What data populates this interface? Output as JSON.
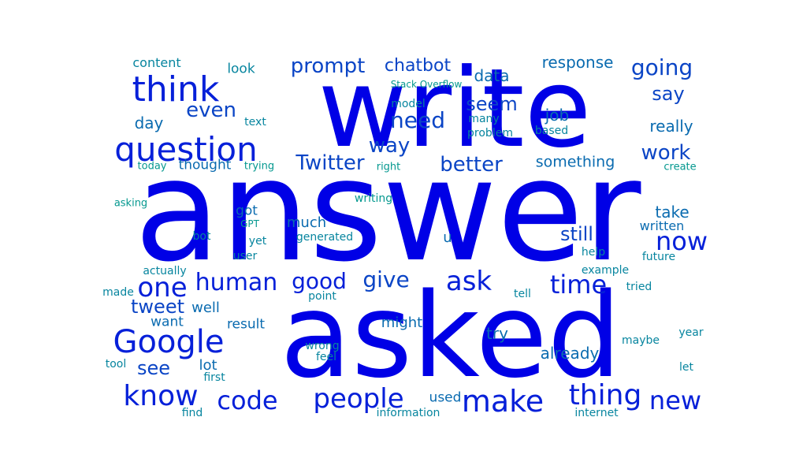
{
  "word_cloud": {
    "palette": {
      "t0": "#0000e6",
      "t1": "#0620d9",
      "t2": "#0b45c6",
      "t3": "#0a6bb0",
      "t4": "#07859f",
      "t5": "#04988f"
    },
    "words": [
      {
        "text": "answer",
        "tier": "t0"
      },
      {
        "text": "asked",
        "tier": "t0"
      },
      {
        "text": "write",
        "tier": "t0"
      },
      {
        "text": "question",
        "tier": "t1"
      },
      {
        "text": "think",
        "tier": "t1"
      },
      {
        "text": "Google",
        "tier": "t1"
      },
      {
        "text": "know",
        "tier": "t1"
      },
      {
        "text": "thing",
        "tier": "t1"
      },
      {
        "text": "make",
        "tier": "t1"
      },
      {
        "text": "people",
        "tier": "t1"
      },
      {
        "text": "new",
        "tier": "t1"
      },
      {
        "text": "one",
        "tier": "t1"
      },
      {
        "text": "ask",
        "tier": "t1"
      },
      {
        "text": "human",
        "tier": "t1"
      },
      {
        "text": "time",
        "tier": "t1"
      },
      {
        "text": "code",
        "tier": "t1"
      },
      {
        "text": "now",
        "tier": "t1"
      },
      {
        "text": "good",
        "tier": "t1"
      },
      {
        "text": "prompt",
        "tier": "t2"
      },
      {
        "text": "going",
        "tier": "t2"
      },
      {
        "text": "need",
        "tier": "t2"
      },
      {
        "text": "give",
        "tier": "t2"
      },
      {
        "text": "tweet",
        "tier": "t2"
      },
      {
        "text": "work",
        "tier": "t2"
      },
      {
        "text": "Twitter",
        "tier": "t2"
      },
      {
        "text": "way",
        "tier": "t2"
      },
      {
        "text": "better",
        "tier": "t2"
      },
      {
        "text": "chatbot",
        "tier": "t2"
      },
      {
        "text": "even",
        "tier": "t2"
      },
      {
        "text": "seem",
        "tier": "t2"
      },
      {
        "text": "say",
        "tier": "t2"
      },
      {
        "text": "see",
        "tier": "t2"
      },
      {
        "text": "still",
        "tier": "t2"
      },
      {
        "text": "response",
        "tier": "t3"
      },
      {
        "text": "day",
        "tier": "t3"
      },
      {
        "text": "data",
        "tier": "t3"
      },
      {
        "text": "really",
        "tier": "t3"
      },
      {
        "text": "job",
        "tier": "t3"
      },
      {
        "text": "something",
        "tier": "t3"
      },
      {
        "text": "take",
        "tier": "t3"
      },
      {
        "text": "much",
        "tier": "t3"
      },
      {
        "text": "got",
        "tier": "t3"
      },
      {
        "text": "already",
        "tier": "t3"
      },
      {
        "text": "try",
        "tier": "t3"
      },
      {
        "text": "might",
        "tier": "t3"
      },
      {
        "text": "used",
        "tier": "t3"
      },
      {
        "text": "lot",
        "tier": "t3"
      },
      {
        "text": "thought",
        "tier": "t3"
      },
      {
        "text": "result",
        "tier": "t3"
      },
      {
        "text": "want",
        "tier": "t3"
      },
      {
        "text": "well",
        "tier": "t3"
      },
      {
        "text": "written",
        "tier": "t3"
      },
      {
        "text": "u",
        "tier": "t3"
      },
      {
        "text": "look",
        "tier": "t4"
      },
      {
        "text": "content",
        "tier": "t4"
      },
      {
        "text": "model",
        "tier": "t4"
      },
      {
        "text": "many",
        "tier": "t4"
      },
      {
        "text": "problem",
        "tier": "t4"
      },
      {
        "text": "based",
        "tier": "t4"
      },
      {
        "text": "text",
        "tier": "t4"
      },
      {
        "text": "generated",
        "tier": "t4"
      },
      {
        "text": "yet",
        "tier": "t4"
      },
      {
        "text": "bot",
        "tier": "t4"
      },
      {
        "text": "user",
        "tier": "t4"
      },
      {
        "text": "actually",
        "tier": "t4"
      },
      {
        "text": "made",
        "tier": "t4"
      },
      {
        "text": "future",
        "tier": "t4"
      },
      {
        "text": "help",
        "tier": "t4"
      },
      {
        "text": "example",
        "tier": "t4"
      },
      {
        "text": "tried",
        "tier": "t4"
      },
      {
        "text": "tell",
        "tier": "t4"
      },
      {
        "text": "point",
        "tier": "t4"
      },
      {
        "text": "wrong",
        "tier": "t4"
      },
      {
        "text": "feel",
        "tier": "t4"
      },
      {
        "text": "first",
        "tier": "t4"
      },
      {
        "text": "tool",
        "tier": "t4"
      },
      {
        "text": "maybe",
        "tier": "t4"
      },
      {
        "text": "year",
        "tier": "t4"
      },
      {
        "text": "let",
        "tier": "t4"
      },
      {
        "text": "find",
        "tier": "t4"
      },
      {
        "text": "information",
        "tier": "t4"
      },
      {
        "text": "internet",
        "tier": "t4"
      },
      {
        "text": "Stack Overflow",
        "tier": "t5"
      },
      {
        "text": "today",
        "tier": "t5"
      },
      {
        "text": "trying",
        "tier": "t5"
      },
      {
        "text": "right",
        "tier": "t5"
      },
      {
        "text": "create",
        "tier": "t5"
      },
      {
        "text": "asking",
        "tier": "t5"
      },
      {
        "text": "writing",
        "tier": "t5"
      },
      {
        "text": "GPT",
        "tier": "t5"
      }
    ]
  }
}
